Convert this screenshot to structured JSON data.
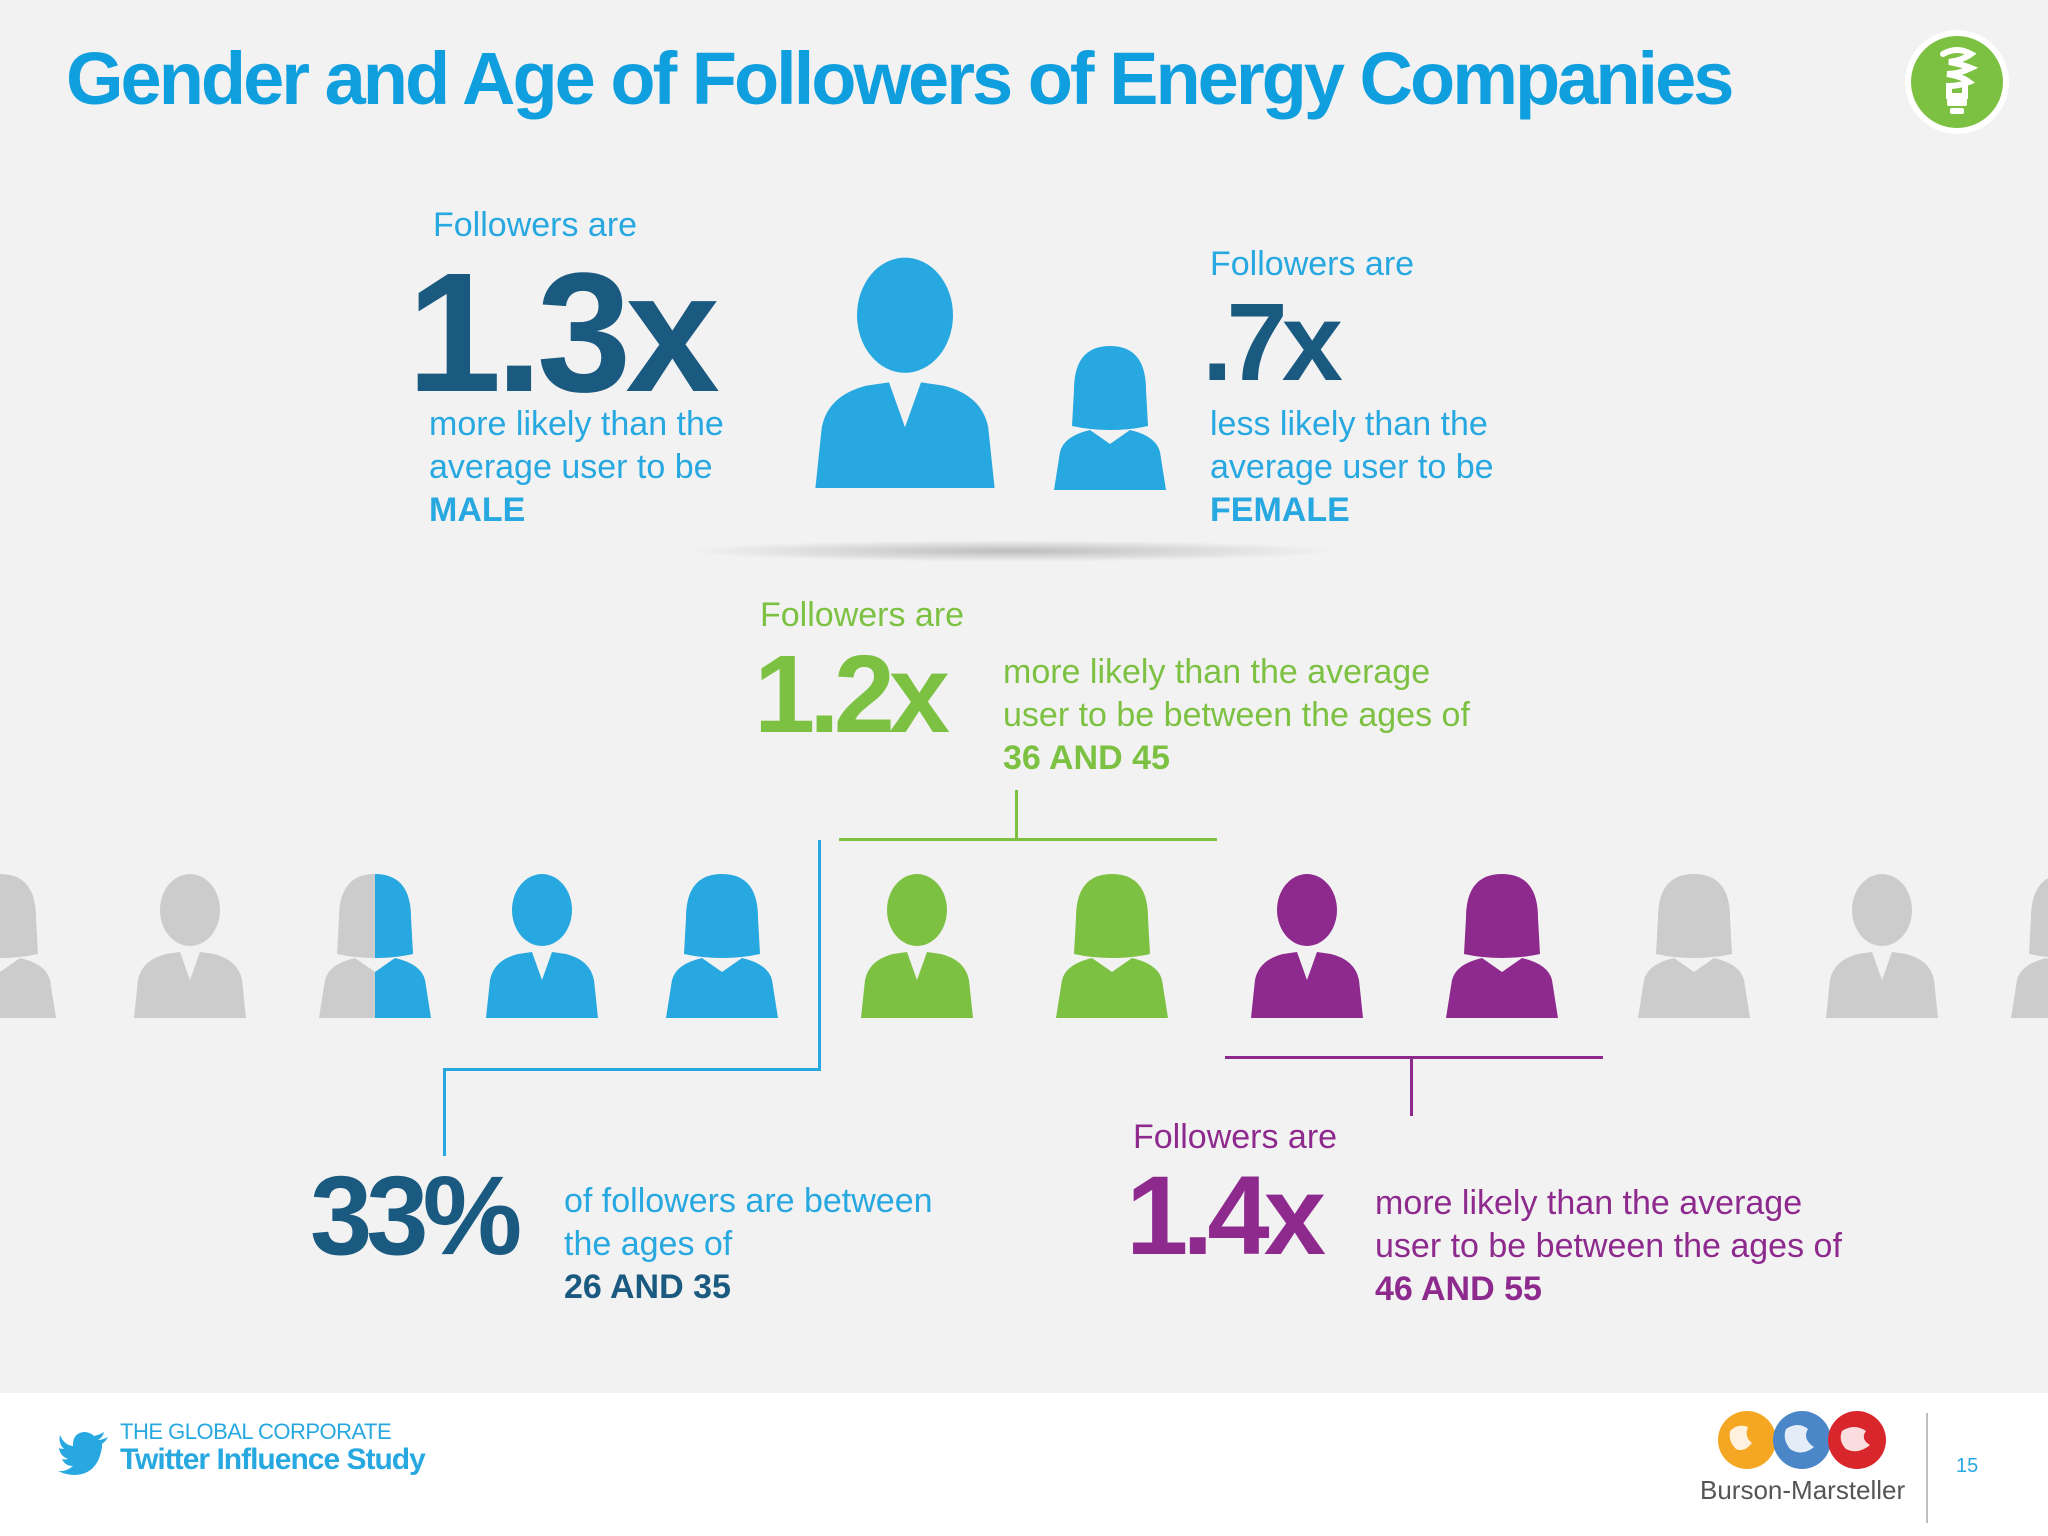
{
  "title": "Gender and Age of Followers of Energy Companies",
  "colors": {
    "title": "#0f9ede",
    "dark_blue": "#1b5a80",
    "light_blue": "#27a8e0",
    "green": "#7dc142",
    "purple": "#8e2a8e",
    "gray_person": "#cccccc",
    "bulb_green": "#7dc142"
  },
  "male_stat": {
    "prefix": "Followers are",
    "value": "1.3x",
    "desc_line1": "more likely than the",
    "desc_line2": "average user to be",
    "label": "MALE"
  },
  "female_stat": {
    "prefix": "Followers are",
    "value": ".7x",
    "desc_line1": "less likely than the",
    "desc_line2": "average user to be",
    "label": "FEMALE"
  },
  "age_36_45": {
    "prefix": "Followers are",
    "value": "1.2x",
    "desc_line1": "more likely than the average",
    "desc_line2": "user to be between the ages of",
    "label": "36 AND 45"
  },
  "age_26_35": {
    "value": "33%",
    "desc_line1": "of followers are between",
    "desc_line2": "the ages of",
    "label": "26 AND 35"
  },
  "age_46_55": {
    "prefix": "Followers are",
    "value": "1.4x",
    "desc_line1": "more likely than the average",
    "desc_line2": "user to be between the ages of",
    "label": "46 AND 55"
  },
  "icons": {
    "bulb": "lightbulb-icon",
    "twitter": "twitter-bird-icon",
    "globes": "globe-icon"
  },
  "footer": {
    "study_line1": "THE GLOBAL CORPORATE",
    "study_line2": "Twitter Influence Study",
    "brand": "Burson-Marsteller",
    "page_number": "15"
  }
}
